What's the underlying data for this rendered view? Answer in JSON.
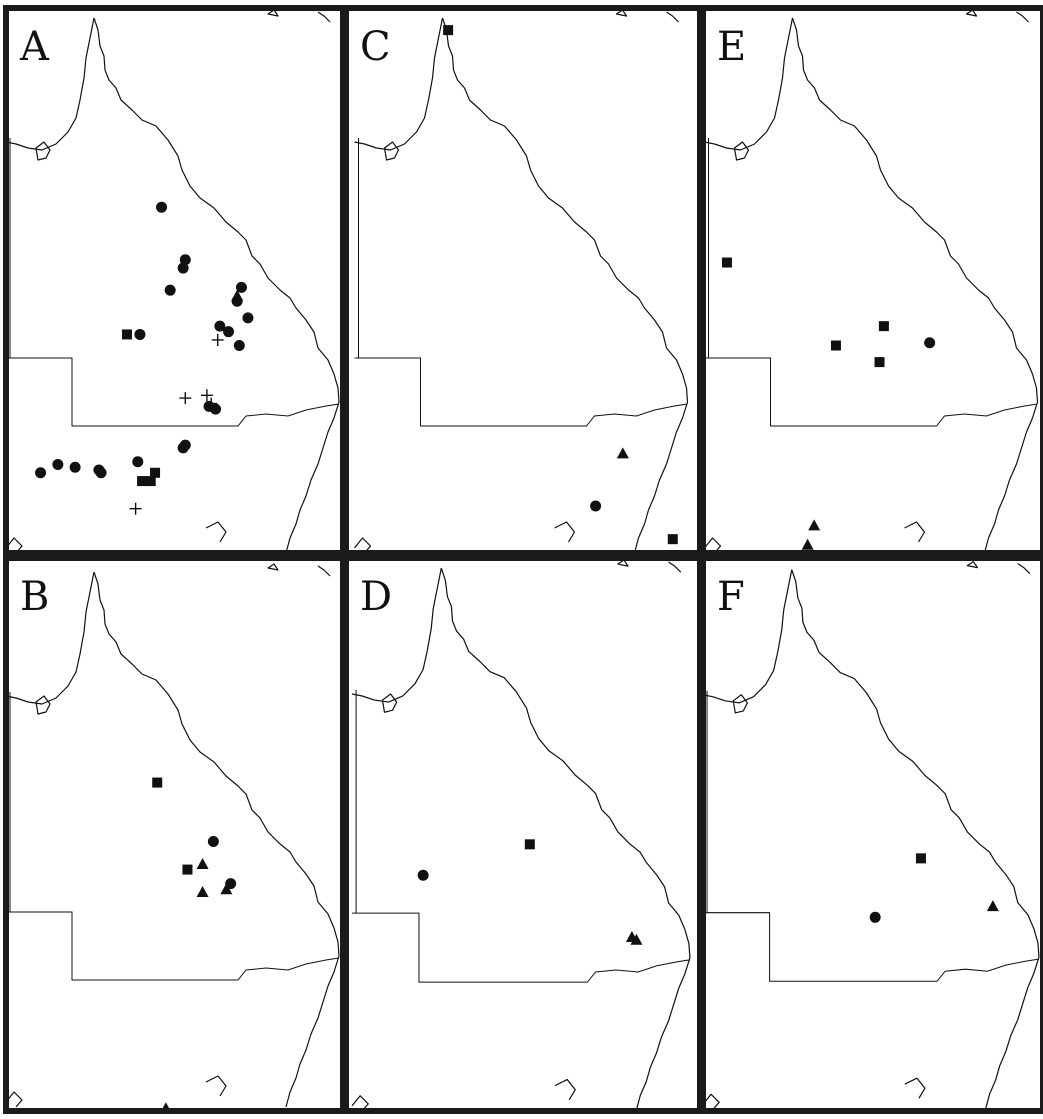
{
  "figure": {
    "panels": [
      {
        "label": "A",
        "records": [
          {
            "symbol": "circle",
            "lon": 145.2,
            "lat": -17.4
          },
          {
            "symbol": "circle",
            "lon": 146.3,
            "lat": -19.3
          },
          {
            "symbol": "circle",
            "lon": 146.2,
            "lat": -19.6
          },
          {
            "symbol": "circle",
            "lon": 145.6,
            "lat": -20.4
          },
          {
            "symbol": "circle",
            "lon": 148.9,
            "lat": -20.3
          },
          {
            "symbol": "circle",
            "lon": 148.7,
            "lat": -20.8
          },
          {
            "symbol": "circle",
            "lon": 149.2,
            "lat": -21.4
          },
          {
            "symbol": "circle",
            "lon": 147.9,
            "lat": -21.7
          },
          {
            "symbol": "circle",
            "lon": 148.3,
            "lat": -21.9
          },
          {
            "symbol": "circle",
            "lon": 148.8,
            "lat": -22.4
          },
          {
            "symbol": "circle",
            "lon": 144.2,
            "lat": -22.0
          },
          {
            "symbol": "square",
            "lon": 143.6,
            "lat": -22.0
          },
          {
            "symbol": "triangle",
            "lon": 148.7,
            "lat": -20.6
          },
          {
            "symbol": "plus",
            "lon": 147.8,
            "lat": -22.2
          },
          {
            "symbol": "plus",
            "lon": 146.3,
            "lat": -24.3
          },
          {
            "symbol": "plus",
            "lon": 147.3,
            "lat": -24.2
          },
          {
            "symbol": "plus",
            "lon": 147.5,
            "lat": -24.5
          },
          {
            "symbol": "circle",
            "lon": 147.4,
            "lat": -24.6
          },
          {
            "symbol": "circle",
            "lon": 147.7,
            "lat": -24.7
          },
          {
            "symbol": "circle",
            "lon": 146.3,
            "lat": -26.0
          },
          {
            "symbol": "circle",
            "lon": 146.2,
            "lat": -26.1
          },
          {
            "symbol": "circle",
            "lon": 144.1,
            "lat": -26.6
          },
          {
            "symbol": "circle",
            "lon": 139.6,
            "lat": -27.0
          },
          {
            "symbol": "circle",
            "lon": 140.4,
            "lat": -26.7
          },
          {
            "symbol": "circle",
            "lon": 141.2,
            "lat": -26.8
          },
          {
            "symbol": "circle",
            "lon": 142.3,
            "lat": -26.9
          },
          {
            "symbol": "circle",
            "lon": 142.4,
            "lat": -27.0
          },
          {
            "symbol": "square",
            "lon": 144.3,
            "lat": -27.3
          },
          {
            "symbol": "square",
            "lon": 144.7,
            "lat": -27.3
          },
          {
            "symbol": "square",
            "lon": 144.9,
            "lat": -27.0
          },
          {
            "symbol": "plus",
            "lon": 144.0,
            "lat": -28.3
          }
        ]
      },
      {
        "label": "B",
        "records": [
          {
            "symbol": "square",
            "lon": 145.0,
            "lat": -18.2
          },
          {
            "symbol": "circle",
            "lon": 147.6,
            "lat": -20.3
          },
          {
            "symbol": "square",
            "lon": 146.4,
            "lat": -21.3
          },
          {
            "symbol": "triangle",
            "lon": 147.1,
            "lat": -21.1
          },
          {
            "symbol": "circle",
            "lon": 148.4,
            "lat": -21.8
          },
          {
            "symbol": "triangle",
            "lon": 147.1,
            "lat": -22.1
          },
          {
            "symbol": "triangle",
            "lon": 148.2,
            "lat": -22.0
          },
          {
            "symbol": "triangle",
            "lon": 145.4,
            "lat": -29.8
          }
        ]
      },
      {
        "label": "C",
        "records": [
          {
            "symbol": "square",
            "lon": 142.5,
            "lat": -11.0
          },
          {
            "symbol": "triangle",
            "lon": 150.2,
            "lat": -26.3
          },
          {
            "symbol": "circle",
            "lon": 149.0,
            "lat": -28.2
          },
          {
            "symbol": "square",
            "lon": 152.4,
            "lat": -29.4
          }
        ]
      },
      {
        "label": "E",
        "records": [
          {
            "symbol": "square",
            "lon": 139.1,
            "lat": -19.4
          },
          {
            "symbol": "square",
            "lon": 144.1,
            "lat": -22.4
          },
          {
            "symbol": "square",
            "lon": 146.3,
            "lat": -21.7
          },
          {
            "symbol": "circle",
            "lon": 148.4,
            "lat": -22.3
          },
          {
            "symbol": "square",
            "lon": 146.1,
            "lat": -23.0
          },
          {
            "symbol": "triangle",
            "lon": 143.1,
            "lat": -28.9
          },
          {
            "symbol": "triangle",
            "lon": 142.8,
            "lat": -29.6
          }
        ]
      },
      {
        "label": "D",
        "records": [
          {
            "symbol": "square",
            "lon": 146.1,
            "lat": -20.4
          },
          {
            "symbol": "circle",
            "lon": 141.4,
            "lat": -21.5
          },
          {
            "symbol": "triangle",
            "lon": 150.6,
            "lat": -23.7
          },
          {
            "symbol": "triangle",
            "lon": 150.8,
            "lat": -23.8
          }
        ]
      },
      {
        "label": "F",
        "records": [
          {
            "symbol": "square",
            "lon": 148.0,
            "lat": -20.9
          },
          {
            "symbol": "circle",
            "lon": 145.9,
            "lat": -23.0
          },
          {
            "symbol": "triangle",
            "lon": 151.3,
            "lat": -22.6
          }
        ]
      }
    ]
  }
}
